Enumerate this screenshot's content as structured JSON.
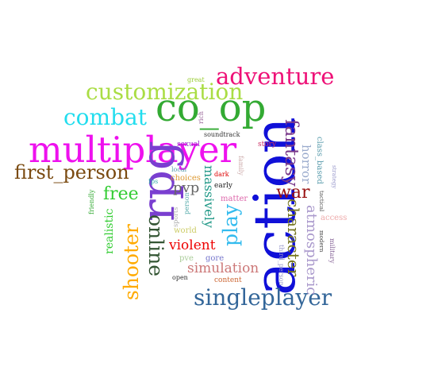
{
  "words": [
    {
      "text": "action",
      "color": "#1010d8"
    },
    {
      "text": "multiplayer",
      "color": "#ee11ee"
    },
    {
      "text": "co_op",
      "color": "#33aa33"
    },
    {
      "text": "rpg",
      "color": "#7a3fd0"
    },
    {
      "text": "adventure",
      "color": "#ee1177"
    },
    {
      "text": "customization",
      "color": "#aadd44"
    },
    {
      "text": "combat",
      "color": "#22ddee"
    },
    {
      "text": "singleplayer",
      "color": "#336699"
    },
    {
      "text": "first_person",
      "color": "#7a4a10"
    },
    {
      "text": "fantasy",
      "color": "#7a3a8a"
    },
    {
      "text": "shooter",
      "color": "#ffaa00"
    },
    {
      "text": "online",
      "color": "#335533"
    },
    {
      "text": "play",
      "color": "#33bbee"
    },
    {
      "text": "free",
      "color": "#33cc33"
    },
    {
      "text": "war",
      "color": "#991111"
    },
    {
      "text": "character",
      "color": "#777722"
    },
    {
      "text": "atmospheric",
      "color": "#aa99cc"
    },
    {
      "text": "simulation",
      "color": "#cc7777"
    },
    {
      "text": "violent",
      "color": "#ee0000"
    },
    {
      "text": "massively",
      "color": "#229988"
    },
    {
      "text": "pvp",
      "color": "#666666"
    },
    {
      "text": "horror",
      "color": "#99aacc"
    },
    {
      "text": "realistic",
      "color": "#33cc33"
    },
    {
      "text": "class_based",
      "color": "#5599aa"
    },
    {
      "text": "great",
      "color": "#99cc33"
    },
    {
      "text": "rich",
      "color": "#996699"
    },
    {
      "text": "soundtrack",
      "color": "#333333"
    },
    {
      "text": "sexual",
      "color": "#9933cc"
    },
    {
      "text": "story",
      "color": "#cc3366"
    },
    {
      "text": "family",
      "color": "#ccaaaa"
    },
    {
      "text": "fps",
      "color": "#33aaaa"
    },
    {
      "text": "local",
      "color": "#5599aa"
    },
    {
      "text": "choices",
      "color": "#dd9933"
    },
    {
      "text": "dark",
      "color": "#dd0000"
    },
    {
      "text": "early",
      "color": "#222222"
    },
    {
      "text": "matter",
      "color": "#dd66aa"
    },
    {
      "text": "friendly",
      "color": "#33aa33"
    },
    {
      "text": "sports",
      "color": "#aaaaaa"
    },
    {
      "text": "person",
      "color": "#55aaaa"
    },
    {
      "text": "world",
      "color": "#cccc66"
    },
    {
      "text": "pve",
      "color": "#aacc99"
    },
    {
      "text": "gore",
      "color": "#7777cc"
    },
    {
      "text": "open",
      "color": "#333333"
    },
    {
      "text": "content",
      "color": "#cc6633"
    },
    {
      "text": "third_person",
      "color": "#9999cc"
    },
    {
      "text": "strategy",
      "color": "#9999cc"
    },
    {
      "text": "tactical",
      "color": "#555555"
    },
    {
      "text": "modern",
      "color": "#444444"
    },
    {
      "text": "military",
      "color": "#886699"
    },
    {
      "text": "access",
      "color": "#eeaaaa"
    }
  ]
}
